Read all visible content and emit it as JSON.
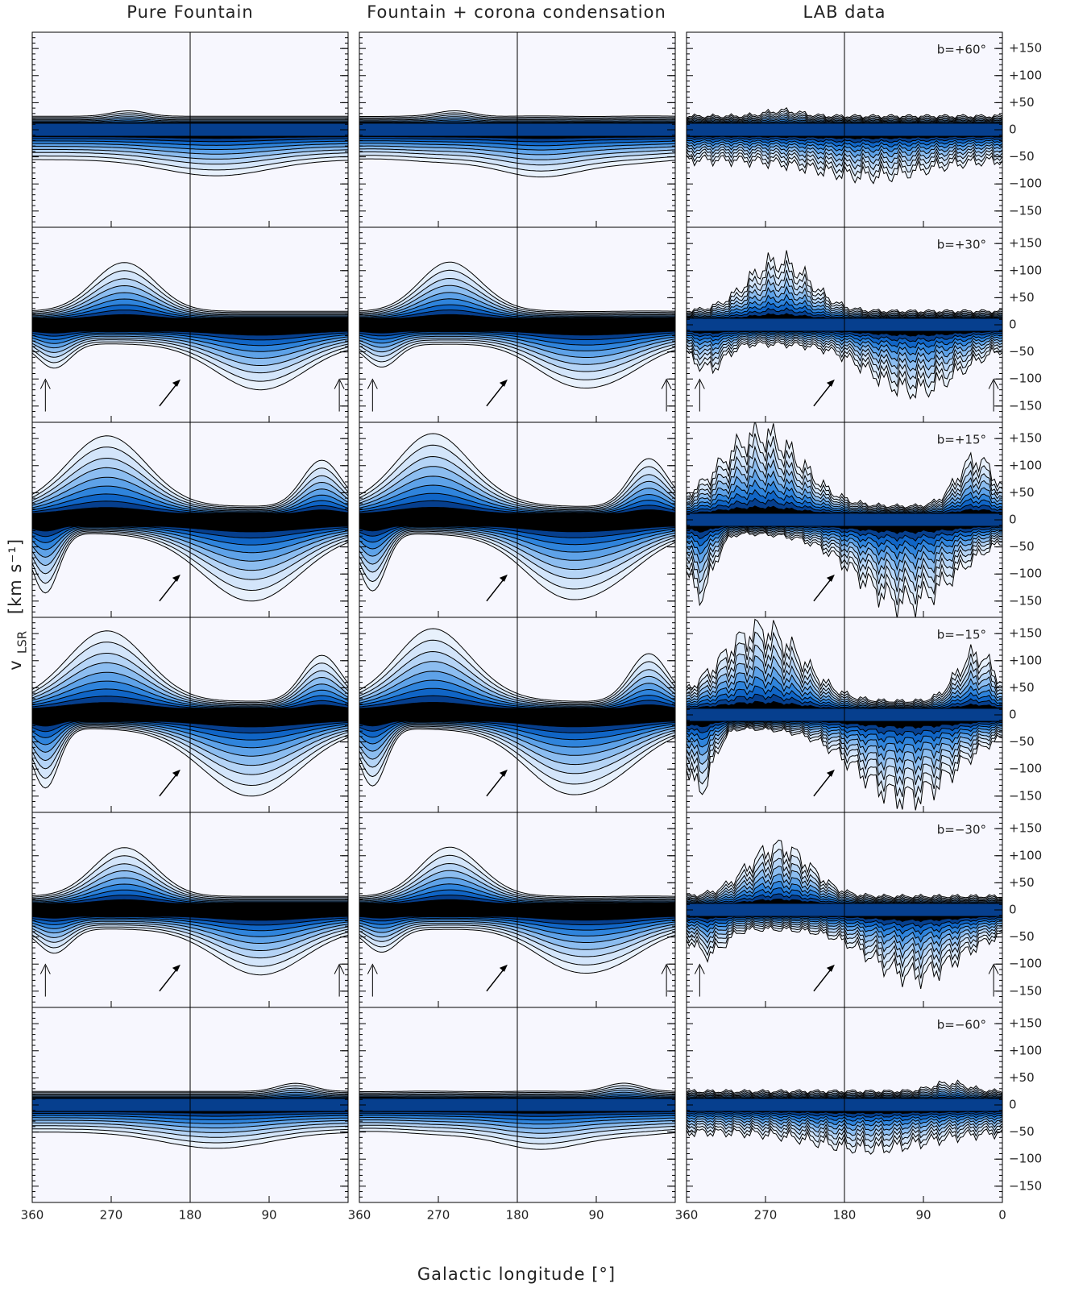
{
  "chart_data": {
    "type": "contour",
    "columns": [
      "Pure Fountain",
      "Fountain + corona condensation",
      "LAB data"
    ],
    "rows": [
      "b=+60°",
      "b=+30°",
      "b=+15°",
      "b=−15°",
      "b=−30°",
      "b=−60°"
    ],
    "xlabel": "Galactic longitude [°]",
    "ylabel": "v",
    "ylabel_sub": "LSR",
    "ylabel_unit": "[km s⁻¹]",
    "xlim": [
      360,
      0
    ],
    "ylim": [
      -180,
      180
    ],
    "xticks": [
      360,
      270,
      180,
      90,
      0
    ],
    "yticks": [
      {
        "value": 150,
        "label": "+150"
      },
      {
        "value": 100,
        "label": "+100"
      },
      {
        "value": 50,
        "label": "+50"
      },
      0,
      {
        "value": -50,
        "label": "−50"
      },
      {
        "value": -100,
        "label": "−100"
      },
      {
        "value": -150,
        "label": "−150"
      }
    ],
    "colors": [
      "#f7f7fe",
      "#e8f1fc",
      "#d3e5fa",
      "#b5d4f6",
      "#8cbdf0",
      "#5ea2e8",
      "#2f84dc",
      "#1065c6",
      "#063f8e",
      "#000000"
    ]
  }
}
